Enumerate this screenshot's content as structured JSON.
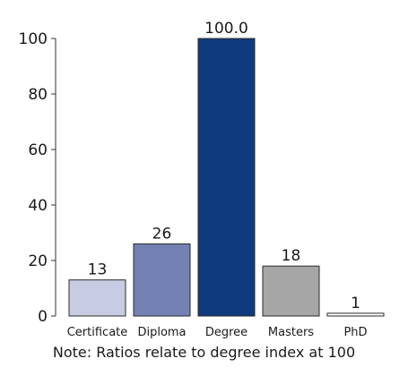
{
  "chart_data": {
    "type": "bar",
    "categories": [
      "Certificate",
      "Diploma",
      "Degree",
      "Masters",
      "PhD"
    ],
    "values": [
      13,
      26,
      100.0,
      18,
      1
    ],
    "data_labels": [
      "13",
      "26",
      "100.0",
      "18",
      "1"
    ],
    "colors": [
      "#c8cce2",
      "#7382b3",
      "#0f3a7e",
      "#a6a6a6",
      "#ffffff"
    ],
    "title": "",
    "xlabel": "",
    "ylabel": "",
    "ylim": [
      0,
      100
    ],
    "yticks": [
      0,
      20,
      40,
      60,
      80,
      100
    ],
    "grid": false
  },
  "note": "Note: Ratios relate to degree index at 100"
}
